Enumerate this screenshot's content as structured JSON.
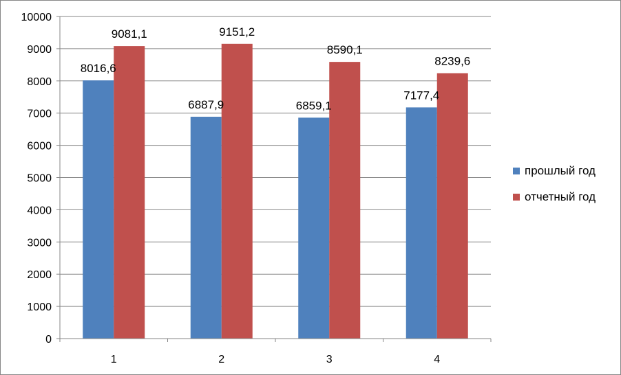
{
  "chart_data": {
    "type": "bar",
    "title": "",
    "xlabel": "",
    "ylabel": "",
    "categories": [
      "1",
      "2",
      "3",
      "4"
    ],
    "ylim": [
      0,
      10000
    ],
    "yticks": [
      "0",
      "1000",
      "2000",
      "3000",
      "4000",
      "5000",
      "6000",
      "7000",
      "8000",
      "9000",
      "10000"
    ],
    "grid": true,
    "legend_position": "right",
    "series": [
      {
        "name": "прошлый год",
        "color": "#4F81BD",
        "values": [
          8016.6,
          6887.9,
          6859.1,
          7177.4
        ],
        "labels": [
          "8016,6",
          "6887,9",
          "6859,1",
          "7177,4"
        ]
      },
      {
        "name": "отчетный год",
        "color": "#C0504D",
        "values": [
          9081.1,
          9151.2,
          8590.1,
          8239.6
        ],
        "labels": [
          "9081,1",
          "9151,2",
          "8590,1",
          "8239,6"
        ]
      }
    ]
  }
}
